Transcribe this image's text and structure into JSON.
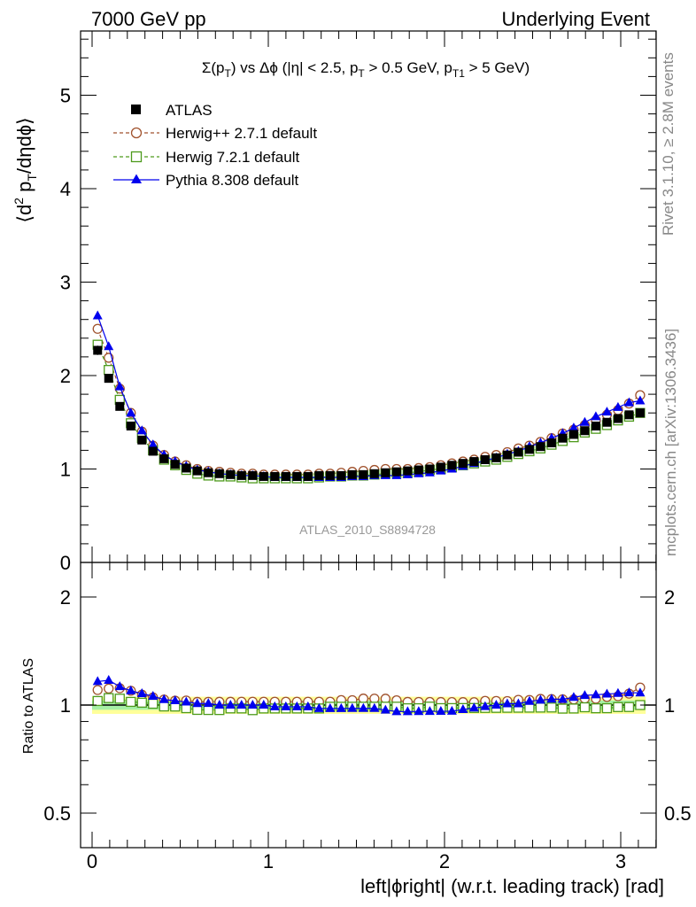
{
  "header": {
    "left_title": "7000 GeV pp",
    "right_title": "Underlying Event"
  },
  "plot_title": {
    "base": "Σ(p",
    "sub1": "T",
    "mid": ") vs Δϕ (|η| < 2.5, p",
    "sub2": "T",
    "mid2": " > 0.5 GeV, p",
    "sub3": "T1",
    "end": " > 5 GeV)"
  },
  "y_label_main": {
    "part1": "⟨d",
    "sup": "2",
    "part2": " p",
    "sub": "T",
    "part3": "/dηdϕ⟩"
  },
  "y_label_ratio": "Ratio to ATLAS",
  "x_label": "left|ϕright| (w.r.t. leading track) [rad]",
  "side_text_top": "Rivet 3.1.10, ≥ 2.8M events",
  "side_text_bottom": "mcplots.cern.ch [arXiv:1306.3436]",
  "watermark": "ATLAS_2010_S8894728",
  "legend": [
    {
      "label": "ATLAS",
      "color": "#000000",
      "marker": "filled-square",
      "line": "none"
    },
    {
      "label": "Herwig++ 2.7.1 default",
      "color": "#a0522d",
      "marker": "open-circle",
      "line": "dashed"
    },
    {
      "label": "Herwig 7.2.1 default",
      "color": "#4d9a1c",
      "marker": "open-square",
      "line": "dashed"
    },
    {
      "label": "Pythia 8.308 default",
      "color": "#0000ee",
      "marker": "filled-triangle",
      "line": "solid"
    }
  ],
  "main_ticks": [
    "0",
    "1",
    "2",
    "3",
    "4",
    "5"
  ],
  "ratio_ticks": [
    "0.5",
    "1",
    "2"
  ],
  "x_ticks": [
    "0",
    "1",
    "2",
    "3"
  ],
  "chart_data": {
    "type": "scatter",
    "xlim": [
      -0.06,
      3.2
    ],
    "ylim_main": [
      0,
      5.65
    ],
    "ylim_ratio": [
      0.35,
      2.3
    ],
    "x": [
      0.0314,
      0.0942,
      0.1571,
      0.2199,
      0.2827,
      0.3456,
      0.4084,
      0.4712,
      0.5341,
      0.5969,
      0.6597,
      0.7226,
      0.7854,
      0.8482,
      0.9111,
      0.9739,
      1.0367,
      1.0996,
      1.1624,
      1.2252,
      1.2881,
      1.3509,
      1.4137,
      1.4765,
      1.5394,
      1.6022,
      1.665,
      1.7279,
      1.7907,
      1.8535,
      1.9164,
      1.9792,
      2.042,
      2.1049,
      2.1677,
      2.2305,
      2.2934,
      2.3562,
      2.419,
      2.4819,
      2.5447,
      2.6075,
      2.6704,
      2.7332,
      2.796,
      2.8588,
      2.9217,
      2.9845,
      3.0473,
      3.1102
    ],
    "series": [
      {
        "name": "ATLAS",
        "values": [
          2.27,
          1.97,
          1.67,
          1.46,
          1.31,
          1.19,
          1.11,
          1.05,
          1.01,
          0.98,
          0.96,
          0.95,
          0.94,
          0.93,
          0.93,
          0.92,
          0.92,
          0.92,
          0.92,
          0.92,
          0.93,
          0.93,
          0.93,
          0.94,
          0.94,
          0.95,
          0.96,
          0.97,
          0.98,
          0.99,
          1.0,
          1.02,
          1.04,
          1.06,
          1.08,
          1.1,
          1.12,
          1.15,
          1.18,
          1.21,
          1.24,
          1.28,
          1.33,
          1.37,
          1.41,
          1.46,
          1.5,
          1.54,
          1.58,
          1.6
        ],
        "errors": [
          0.05,
          0.04,
          0.04,
          0.03,
          0.03,
          0.03,
          0.03,
          0.02,
          0.02,
          0.02,
          0.02,
          0.02,
          0.02,
          0.02,
          0.02,
          0.02,
          0.02,
          0.02,
          0.02,
          0.02,
          0.02,
          0.02,
          0.02,
          0.02,
          0.02,
          0.02,
          0.02,
          0.02,
          0.02,
          0.02,
          0.02,
          0.02,
          0.02,
          0.02,
          0.02,
          0.02,
          0.02,
          0.02,
          0.03,
          0.03,
          0.03,
          0.03,
          0.03,
          0.03,
          0.03,
          0.03,
          0.03,
          0.03,
          0.04,
          0.04
        ]
      },
      {
        "name": "Herwig++ 2.7.1 default",
        "values": [
          2.5,
          2.19,
          1.86,
          1.6,
          1.4,
          1.25,
          1.15,
          1.08,
          1.04,
          1.0,
          0.98,
          0.97,
          0.96,
          0.95,
          0.95,
          0.94,
          0.94,
          0.94,
          0.94,
          0.94,
          0.95,
          0.95,
          0.96,
          0.97,
          0.98,
          0.99,
          1.0,
          1.0,
          1.0,
          1.01,
          1.02,
          1.04,
          1.06,
          1.08,
          1.1,
          1.13,
          1.15,
          1.18,
          1.22,
          1.25,
          1.29,
          1.33,
          1.38,
          1.42,
          1.47,
          1.52,
          1.58,
          1.63,
          1.7,
          1.79
        ]
      },
      {
        "name": "Herwig 7.2.1 default",
        "values": [
          2.33,
          2.06,
          1.74,
          1.49,
          1.33,
          1.2,
          1.1,
          1.04,
          0.99,
          0.95,
          0.93,
          0.92,
          0.92,
          0.91,
          0.9,
          0.9,
          0.9,
          0.9,
          0.9,
          0.9,
          0.91,
          0.92,
          0.92,
          0.93,
          0.93,
          0.94,
          0.95,
          0.96,
          0.96,
          0.97,
          0.99,
          1.0,
          1.02,
          1.04,
          1.06,
          1.08,
          1.1,
          1.13,
          1.16,
          1.19,
          1.22,
          1.26,
          1.3,
          1.34,
          1.39,
          1.43,
          1.47,
          1.52,
          1.56,
          1.6
        ]
      },
      {
        "name": "Pythia 8.308 default",
        "values": [
          2.64,
          2.31,
          1.88,
          1.6,
          1.41,
          1.26,
          1.15,
          1.08,
          1.03,
          0.99,
          0.97,
          0.95,
          0.94,
          0.93,
          0.93,
          0.92,
          0.91,
          0.91,
          0.91,
          0.91,
          0.91,
          0.91,
          0.91,
          0.92,
          0.92,
          0.93,
          0.93,
          0.93,
          0.94,
          0.95,
          0.96,
          0.98,
          1.0,
          1.03,
          1.06,
          1.09,
          1.12,
          1.16,
          1.19,
          1.24,
          1.28,
          1.33,
          1.38,
          1.44,
          1.5,
          1.56,
          1.61,
          1.66,
          1.71,
          1.73
        ]
      }
    ]
  }
}
